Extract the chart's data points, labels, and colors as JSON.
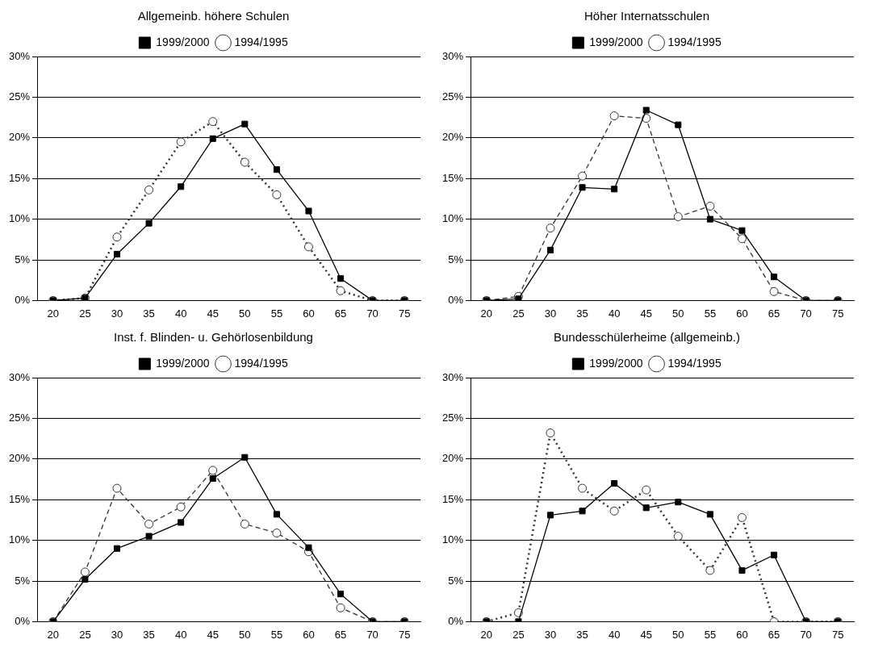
{
  "chart_data": [
    {
      "type": "line",
      "title": "Allgemeinb. höhere Schulen",
      "categories": [
        "20",
        "25",
        "30",
        "35",
        "40",
        "45",
        "50",
        "55",
        "60",
        "65",
        "70",
        "75"
      ],
      "ylim": [
        0,
        30
      ],
      "yticks": [
        {
          "value": 0,
          "label": "0%"
        },
        {
          "value": 5,
          "label": "5%"
        },
        {
          "value": 10,
          "label": "10%"
        },
        {
          "value": 15,
          "label": "15%"
        },
        {
          "value": 20,
          "label": "20%"
        },
        {
          "value": 25,
          "label": "25%"
        },
        {
          "value": 30,
          "label": "30%"
        }
      ],
      "grid": "y",
      "legend": "top",
      "series": [
        {
          "name": "1999/2000",
          "color": "#000000",
          "marker": "square",
          "line_style": "solid",
          "values": [
            0,
            0.3,
            5.7,
            9.5,
            14.0,
            19.9,
            21.7,
            16.1,
            11.0,
            2.7,
            0,
            0
          ]
        },
        {
          "name": "1994/1995",
          "color": "#333333",
          "marker": "circle",
          "line_style": "dotted",
          "values": [
            0,
            0.3,
            7.8,
            13.6,
            19.5,
            22.0,
            17.0,
            13.0,
            6.6,
            1.2,
            0,
            0
          ]
        }
      ]
    },
    {
      "type": "line",
      "title": "Höher Internatsschulen",
      "categories": [
        "20",
        "25",
        "30",
        "35",
        "40",
        "45",
        "50",
        "55",
        "60",
        "65",
        "70",
        "75"
      ],
      "ylim": [
        0,
        30
      ],
      "yticks": [
        {
          "value": 0,
          "label": "0%"
        },
        {
          "value": 5,
          "label": "5%"
        },
        {
          "value": 10,
          "label": "10%"
        },
        {
          "value": 15,
          "label": "15%"
        },
        {
          "value": 20,
          "label": "20%"
        },
        {
          "value": 25,
          "label": "25%"
        },
        {
          "value": 30,
          "label": "30%"
        }
      ],
      "grid": "y",
      "legend": "top",
      "series": [
        {
          "name": "1999/2000",
          "color": "#000000",
          "marker": "square",
          "line_style": "solid",
          "values": [
            0,
            0.2,
            6.2,
            13.9,
            13.7,
            23.4,
            21.6,
            10.0,
            8.6,
            2.9,
            0,
            0
          ]
        },
        {
          "name": "1994/1995",
          "color": "#333333",
          "marker": "circle",
          "line_style": "dashed",
          "values": [
            0,
            0.5,
            8.9,
            15.3,
            22.7,
            22.4,
            10.3,
            11.6,
            7.6,
            1.1,
            0,
            0
          ]
        }
      ]
    },
    {
      "type": "line",
      "title": "Inst. f. Blinden- u. Gehörlosenbildung",
      "categories": [
        "20",
        "25",
        "30",
        "35",
        "40",
        "45",
        "50",
        "55",
        "60",
        "65",
        "70",
        "75"
      ],
      "ylim": [
        0,
        30
      ],
      "yticks": [
        {
          "value": 0,
          "label": "0%"
        },
        {
          "value": 5,
          "label": "5%"
        },
        {
          "value": 10,
          "label": "10%"
        },
        {
          "value": 15,
          "label": "15%"
        },
        {
          "value": 20,
          "label": "20%"
        },
        {
          "value": 25,
          "label": "25%"
        },
        {
          "value": 30,
          "label": "30%"
        }
      ],
      "grid": "y",
      "legend": "top",
      "series": [
        {
          "name": "1999/2000",
          "color": "#000000",
          "marker": "square",
          "line_style": "solid",
          "values": [
            0,
            5.2,
            9.0,
            10.5,
            12.2,
            17.6,
            20.2,
            13.2,
            9.1,
            3.4,
            0,
            0
          ]
        },
        {
          "name": "1994/1995",
          "color": "#333333",
          "marker": "circle",
          "line_style": "dashed",
          "values": [
            0,
            6.1,
            16.4,
            12.0,
            14.1,
            18.6,
            12.0,
            10.9,
            8.6,
            1.7,
            0,
            0
          ]
        }
      ]
    },
    {
      "type": "line",
      "title": "Bundesschülerheime (allgemeinb.)",
      "categories": [
        "20",
        "25",
        "30",
        "35",
        "40",
        "45",
        "50",
        "55",
        "60",
        "65",
        "70",
        "75"
      ],
      "ylim": [
        0,
        30
      ],
      "yticks": [
        {
          "value": 0,
          "label": "0%"
        },
        {
          "value": 5,
          "label": "5%"
        },
        {
          "value": 10,
          "label": "10%"
        },
        {
          "value": 15,
          "label": "15%"
        },
        {
          "value": 20,
          "label": "20%"
        },
        {
          "value": 25,
          "label": "25%"
        },
        {
          "value": 30,
          "label": "30%"
        }
      ],
      "grid": "y",
      "legend": "top",
      "series": [
        {
          "name": "1999/2000",
          "color": "#000000",
          "marker": "square",
          "line_style": "solid",
          "values": [
            0,
            0,
            13.1,
            13.6,
            17.0,
            14.0,
            14.7,
            13.2,
            6.3,
            8.2,
            0,
            0
          ]
        },
        {
          "name": "1994/1995",
          "color": "#333333",
          "marker": "circle",
          "line_style": "dotted",
          "values": [
            0,
            1.1,
            23.2,
            16.4,
            13.6,
            16.2,
            10.5,
            6.3,
            12.8,
            0,
            0,
            0
          ]
        }
      ]
    }
  ]
}
